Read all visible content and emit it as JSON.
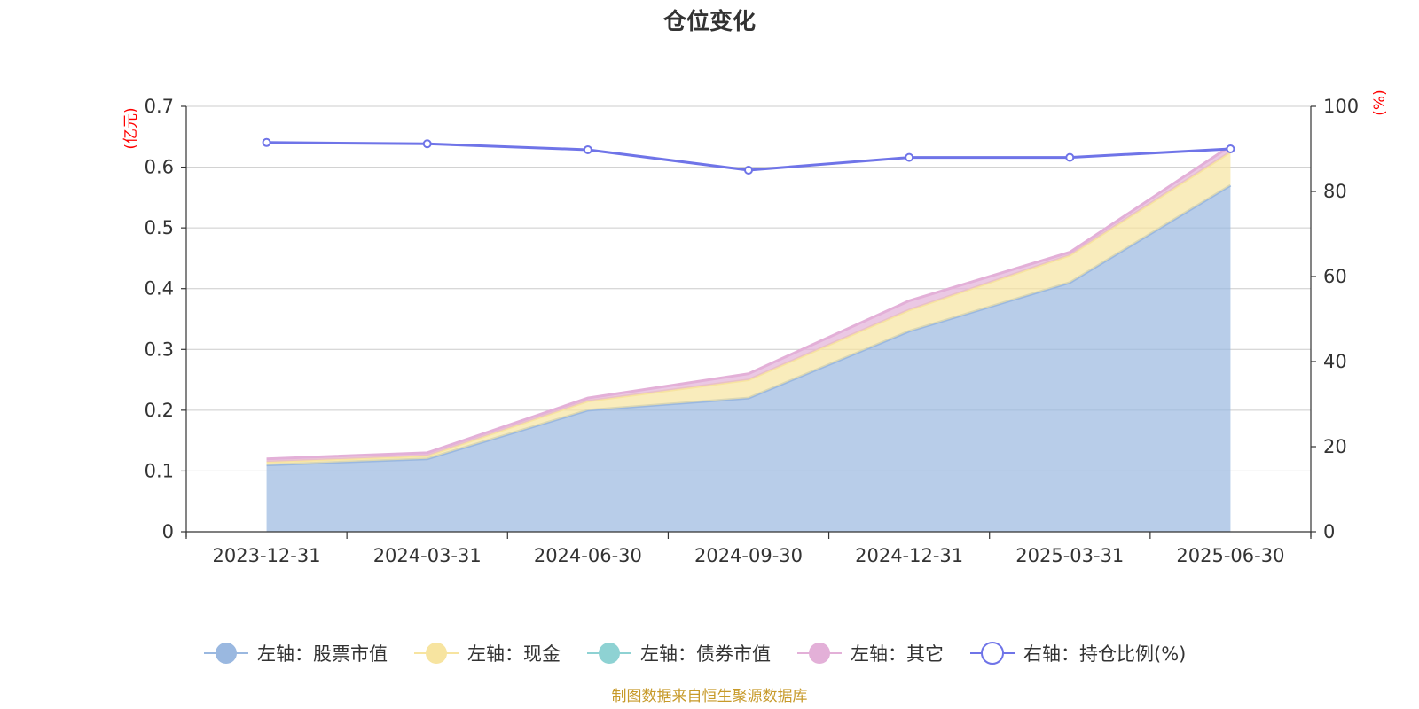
{
  "chart_data": {
    "type": "area",
    "title": "仓位变化",
    "left_axis_unit": "(亿元)",
    "right_axis_unit": "(%)",
    "categories": [
      "2023-12-31",
      "2024-03-31",
      "2024-06-30",
      "2024-09-30",
      "2024-12-31",
      "2025-03-31",
      "2025-06-30"
    ],
    "left_ylim": [
      0,
      0.7
    ],
    "left_yticks": [
      "0",
      "0.1",
      "0.2",
      "0.3",
      "0.4",
      "0.5",
      "0.6",
      "0.7"
    ],
    "right_ylim": [
      0,
      100
    ],
    "right_yticks": [
      "0",
      "20",
      "40",
      "60",
      "80",
      "100"
    ],
    "grid": true,
    "legend_position": "bottom",
    "series": [
      {
        "name": "左轴：股票市值",
        "axis": "left",
        "stacked": true,
        "color": "#9ab8e0",
        "values": [
          0.11,
          0.12,
          0.2,
          0.22,
          0.33,
          0.41,
          0.57
        ]
      },
      {
        "name": "左轴：现金",
        "axis": "left",
        "stacked": true,
        "color": "#f7e4a0",
        "values": [
          0.005,
          0.005,
          0.015,
          0.03,
          0.035,
          0.045,
          0.055
        ]
      },
      {
        "name": "左轴：债券市值",
        "axis": "left",
        "stacked": true,
        "color": "#8ed2d3",
        "values": [
          0,
          0,
          0,
          0,
          0,
          0,
          0
        ]
      },
      {
        "name": "左轴：其它",
        "axis": "left",
        "stacked": true,
        "color": "#e3b0d8",
        "values": [
          0.005,
          0.005,
          0.005,
          0.01,
          0.015,
          0.005,
          0.01
        ]
      },
      {
        "name": "右轴：持仓比例(%)",
        "axis": "right",
        "type": "line",
        "color": "#6f74e8",
        "values": [
          91.5,
          91.2,
          89.8,
          85.0,
          88.0,
          88.0,
          90.0
        ]
      }
    ]
  },
  "footer": "制图数据来自恒生聚源数据库"
}
